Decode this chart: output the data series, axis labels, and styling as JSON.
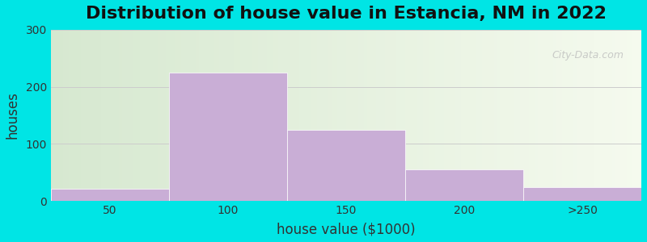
{
  "title": "Distribution of house value in Estancia, NM in 2022",
  "xlabel": "house value ($1000)",
  "ylabel": "houses",
  "bar_labels": [
    "50",
    "100",
    "150",
    "200",
    ">250"
  ],
  "bar_heights": [
    22,
    225,
    125,
    55,
    25
  ],
  "bar_color": "#c9aed6",
  "bar_edgecolor": "#ffffff",
  "ylim": [
    0,
    300
  ],
  "yticks": [
    0,
    100,
    200,
    300
  ],
  "outer_bg": "#00e5e5",
  "plot_bg_left": "#d6e8d0",
  "plot_bg_right": "#f5faee",
  "watermark": "City-Data.com",
  "title_fontsize": 16,
  "axis_label_fontsize": 12,
  "tick_fontsize": 10
}
